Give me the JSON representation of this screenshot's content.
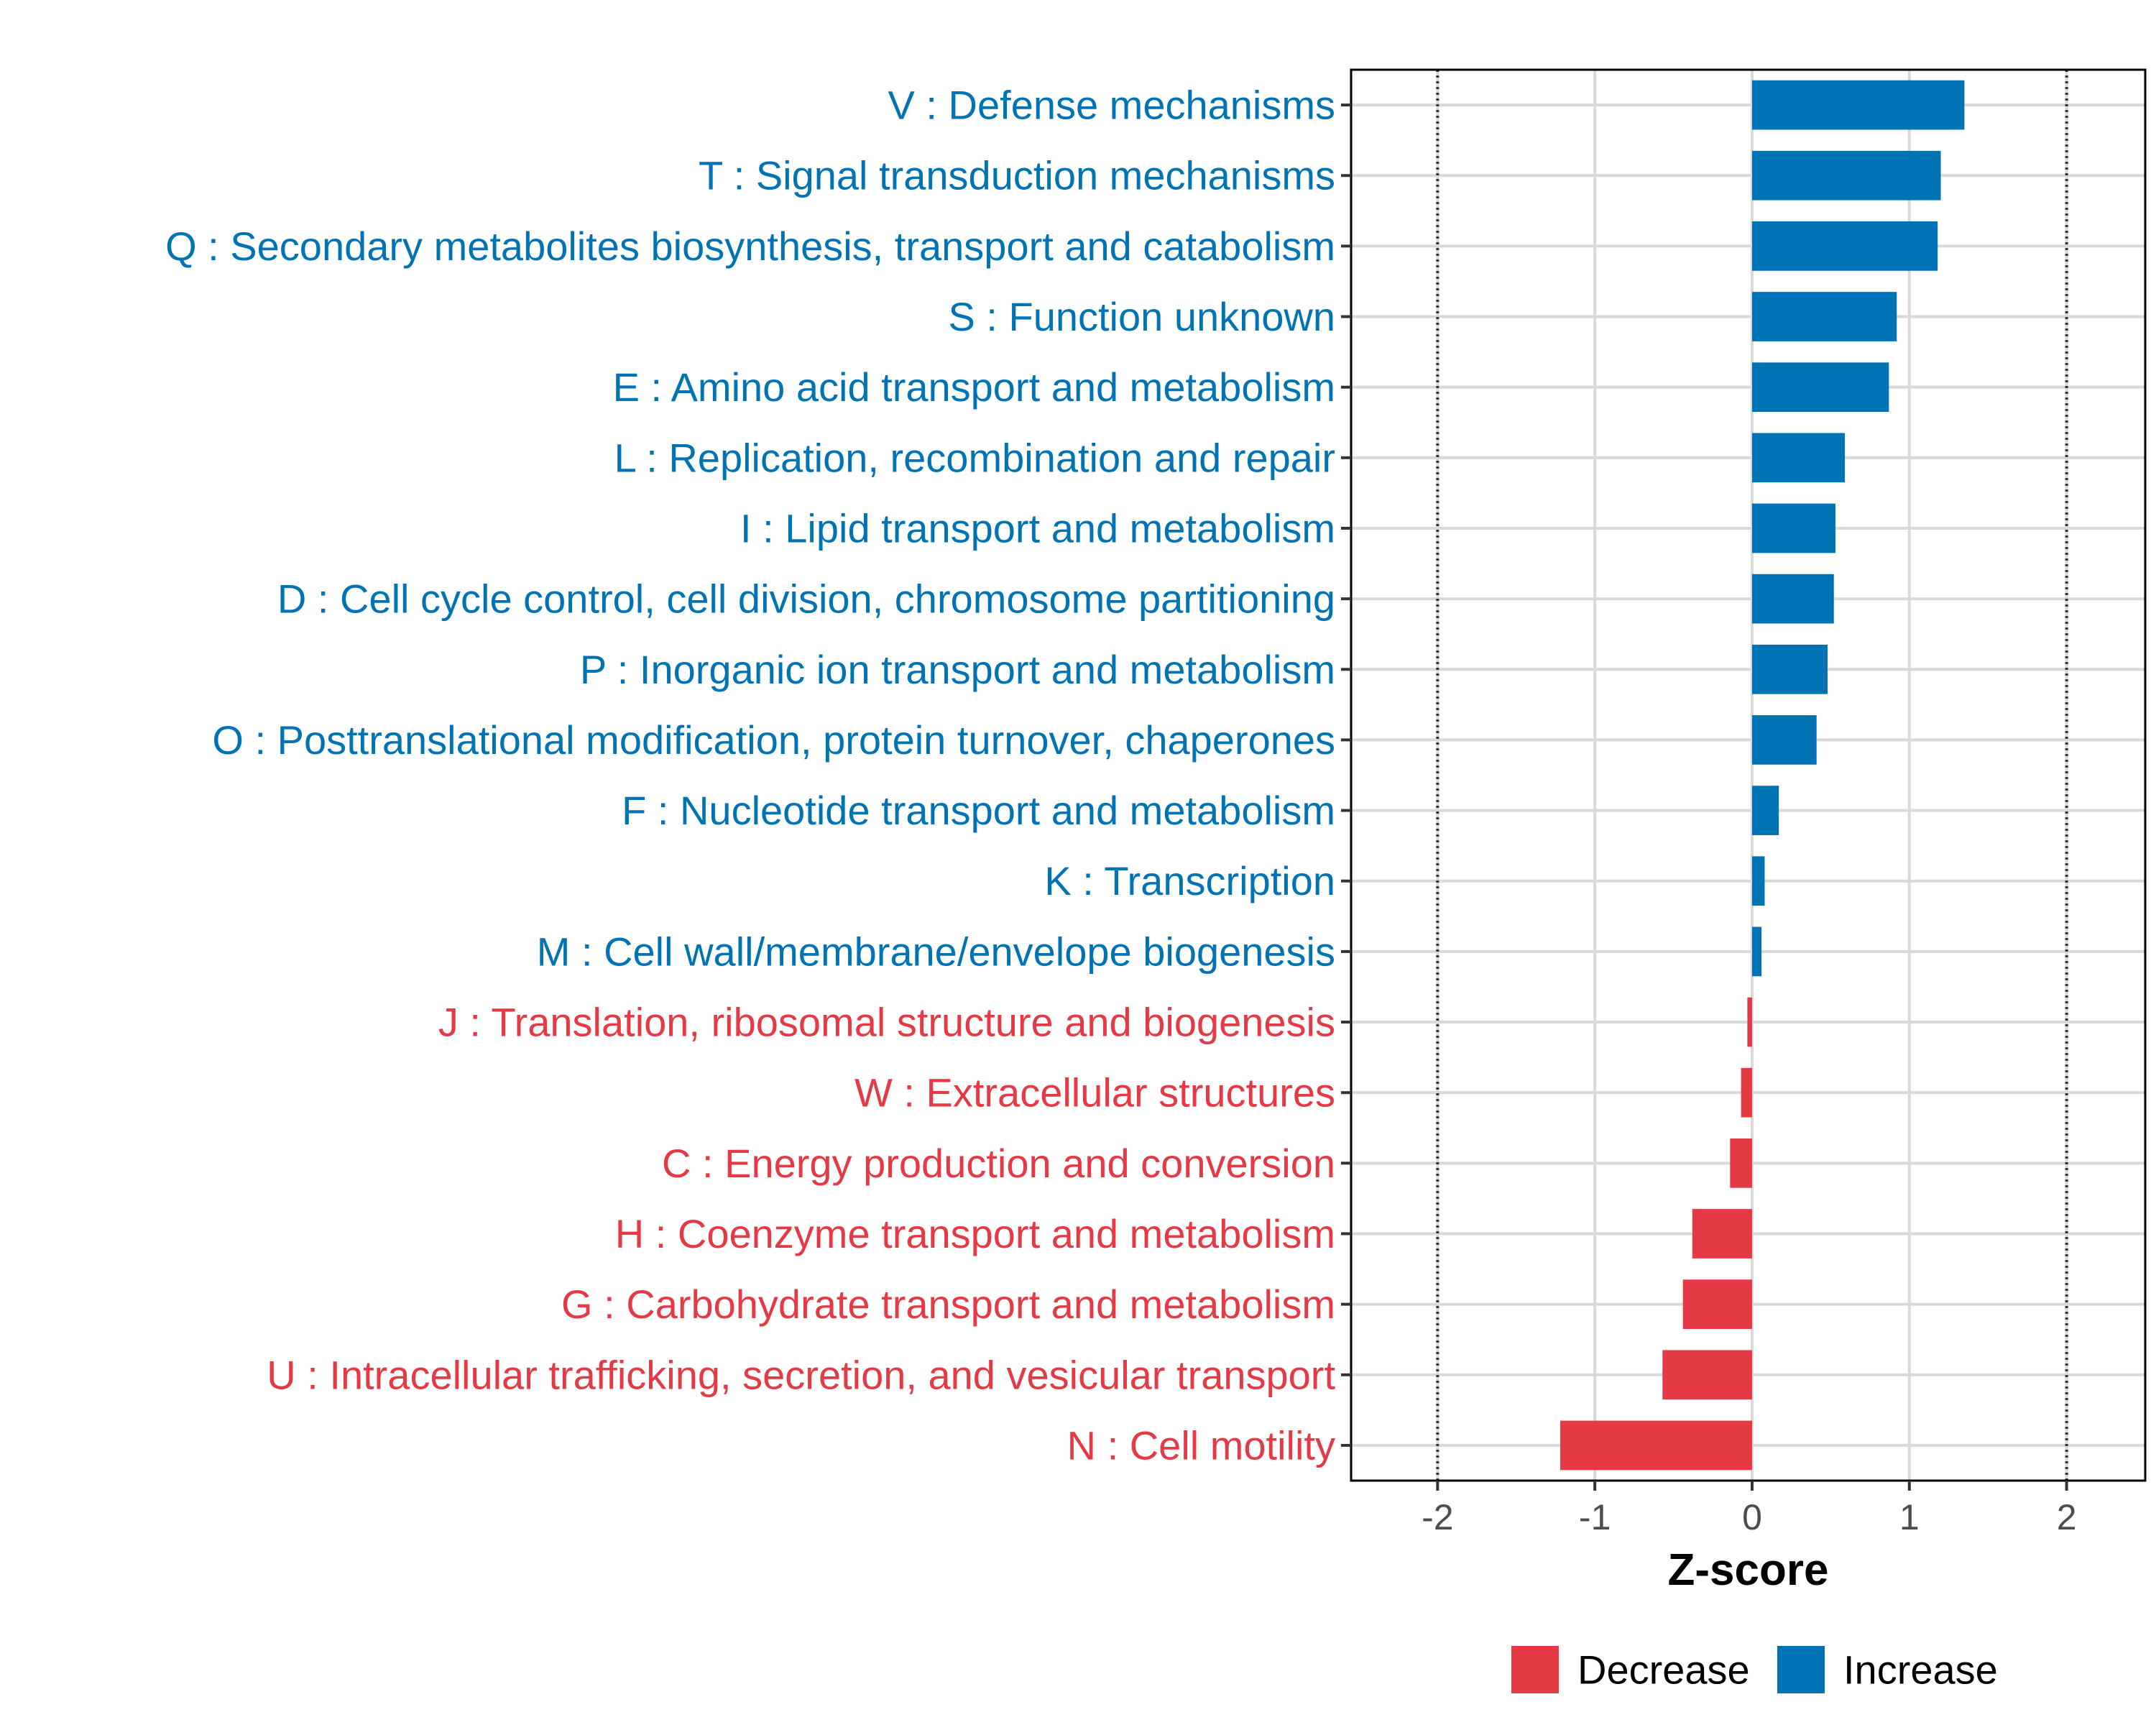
{
  "chart_data": {
    "type": "bar",
    "orientation": "horizontal",
    "title": "",
    "xlabel": "Z-score",
    "ylabel": "",
    "xlim": [
      -2.55,
      2.5
    ],
    "x_ticks": [
      "-2",
      "-1",
      "0",
      "1",
      "2"
    ],
    "x_tick_values": [
      -2,
      -1,
      0,
      1,
      2
    ],
    "reference_lines": [
      -2,
      2
    ],
    "grid": true,
    "categories": [
      "V : Defense mechanisms",
      "T : Signal transduction mechanisms",
      "Q : Secondary metabolites biosynthesis, transport and catabolism",
      "S : Function unknown",
      "E : Amino acid transport and metabolism",
      "L : Replication, recombination and repair",
      "I : Lipid transport and metabolism",
      "D : Cell cycle control, cell division, chromosome partitioning",
      "P : Inorganic ion transport and metabolism",
      "O : Posttranslational modification, protein turnover, chaperones",
      "F : Nucleotide transport and metabolism",
      "K : Transcription",
      "M : Cell wall/membrane/envelope biogenesis",
      "J : Translation, ribosomal structure and biogenesis",
      "W : Extracellular structures",
      "C : Energy production and conversion",
      "H : Coenzyme transport and metabolism",
      "G : Carbohydrate transport and metabolism",
      "U : Intracellular trafficking, secretion, and vesicular transport",
      "N : Cell motility"
    ],
    "values": [
      1.35,
      1.2,
      1.18,
      0.92,
      0.87,
      0.59,
      0.53,
      0.52,
      0.48,
      0.41,
      0.17,
      0.08,
      0.06,
      -0.03,
      -0.07,
      -0.14,
      -0.38,
      -0.44,
      -0.57,
      -1.22
    ],
    "groups": [
      "Increase",
      "Increase",
      "Increase",
      "Increase",
      "Increase",
      "Increase",
      "Increase",
      "Increase",
      "Increase",
      "Increase",
      "Increase",
      "Increase",
      "Increase",
      "Decrease",
      "Decrease",
      "Decrease",
      "Decrease",
      "Decrease",
      "Decrease",
      "Decrease"
    ],
    "legend": {
      "position": "bottom",
      "entries": [
        {
          "label": "Decrease",
          "color": "#E63946"
        },
        {
          "label": "Increase",
          "color": "#0073B5"
        }
      ]
    },
    "colors": {
      "Decrease": "#E63946",
      "Increase": "#0073B5"
    }
  }
}
